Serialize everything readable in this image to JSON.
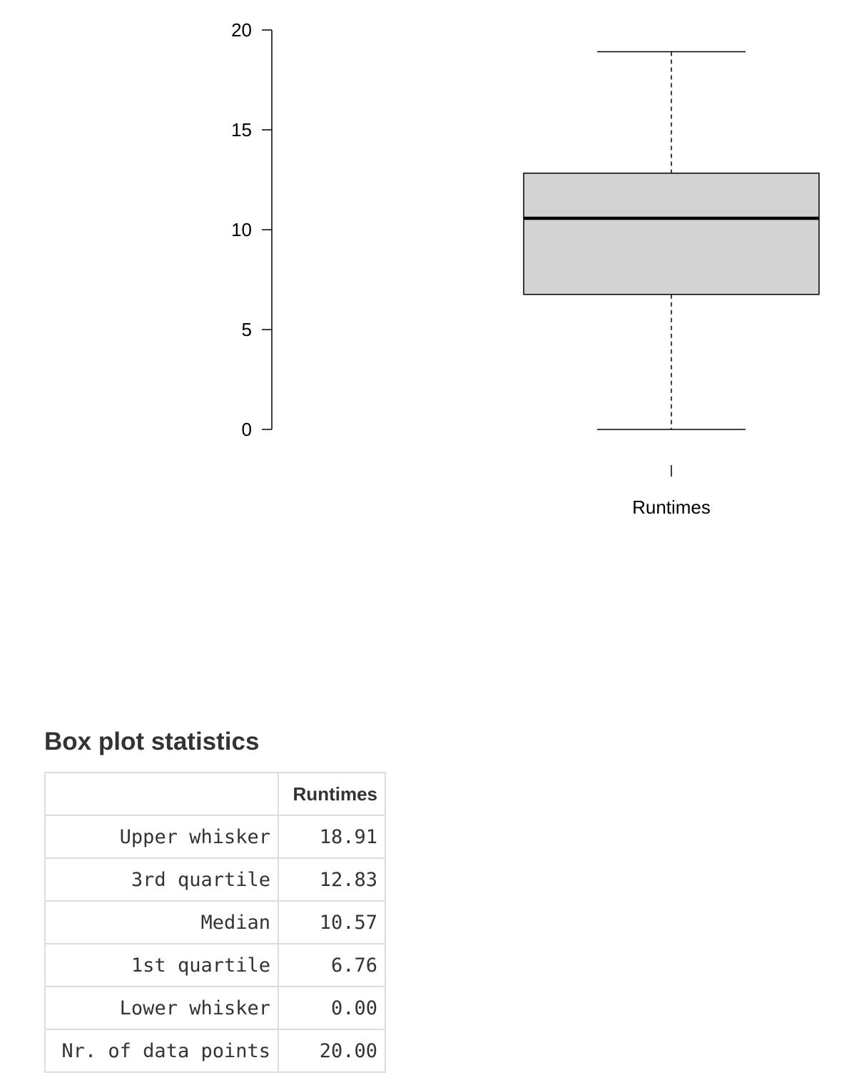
{
  "chart_data": {
    "type": "box",
    "ylim": [
      0,
      20
    ],
    "yticks": [
      0,
      5,
      10,
      15,
      20
    ],
    "categories": [
      "Runtimes"
    ],
    "boxes": [
      {
        "name": "Runtimes",
        "upper_whisker": 18.91,
        "q3": 12.83,
        "median": 10.57,
        "q1": 6.76,
        "lower_whisker": 0.0
      }
    ]
  },
  "stats": {
    "title": "Box plot statistics",
    "header": [
      "",
      "Runtimes"
    ],
    "rows": [
      {
        "label": "Upper whisker",
        "value": "18.91"
      },
      {
        "label": "3rd quartile",
        "value": "12.83"
      },
      {
        "label": "Median",
        "value": "10.57"
      },
      {
        "label": "1st quartile",
        "value": "6.76"
      },
      {
        "label": "Lower whisker",
        "value": "0.00"
      },
      {
        "label": "Nr. of data points",
        "value": "20.00"
      }
    ]
  }
}
